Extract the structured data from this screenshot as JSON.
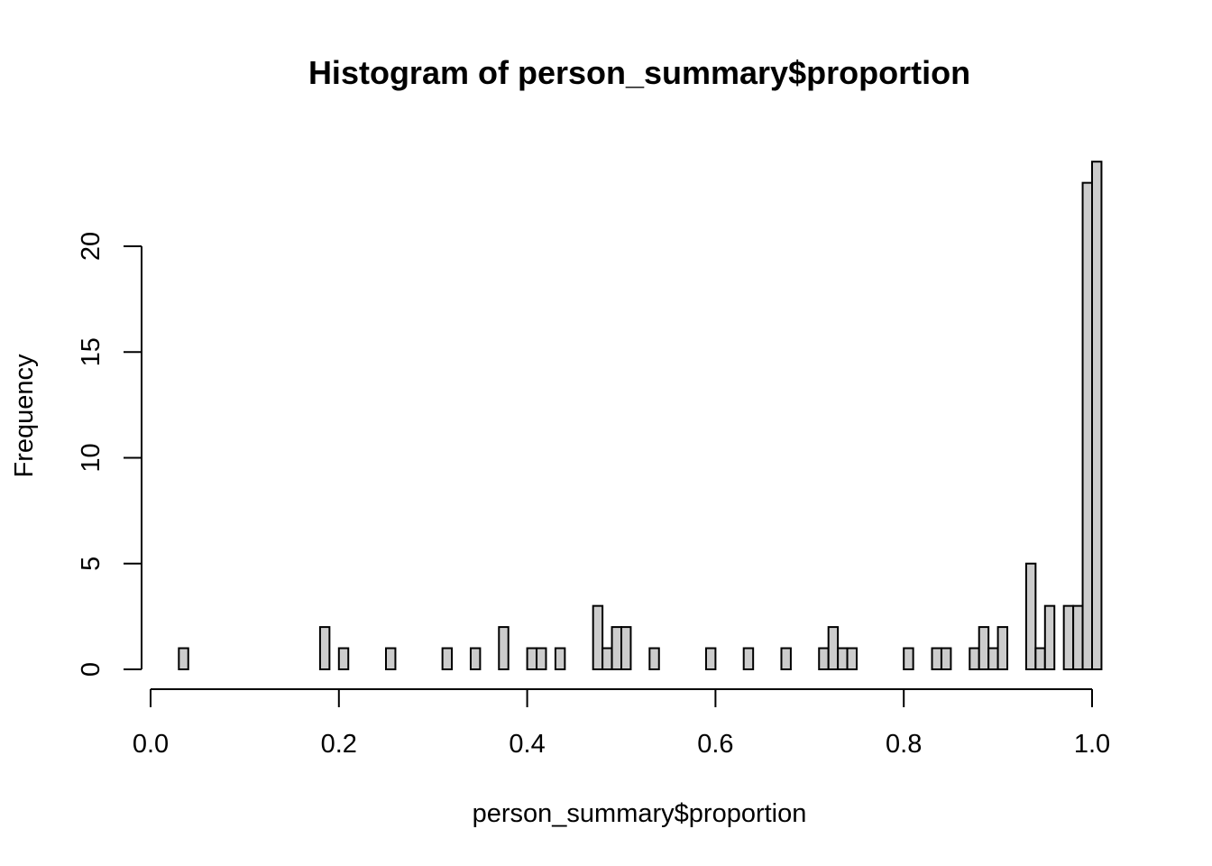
{
  "chart_data": {
    "type": "bar",
    "title": "Histogram of person_summary$proportion",
    "xlabel": "person_summary$proportion",
    "ylabel": "Frequency",
    "bin_width": 0.01,
    "xlim": [
      0.0,
      1.0
    ],
    "ylim": [
      0,
      24
    ],
    "x_ticks": [
      {
        "value": 0.0,
        "label": "0.0"
      },
      {
        "value": 0.2,
        "label": "0.2"
      },
      {
        "value": 0.4,
        "label": "0.4"
      },
      {
        "value": 0.6,
        "label": "0.6"
      },
      {
        "value": 0.8,
        "label": "0.8"
      },
      {
        "value": 1.0,
        "label": "1.0"
      }
    ],
    "y_ticks": [
      {
        "value": 0,
        "label": "0"
      },
      {
        "value": 5,
        "label": "5"
      },
      {
        "value": 10,
        "label": "10"
      },
      {
        "value": 15,
        "label": "15"
      },
      {
        "value": 20,
        "label": "20"
      }
    ],
    "bar_fill": "#cccccc",
    "bin_start": 0.03,
    "counts": [
      1,
      0,
      0,
      0,
      0,
      0,
      0,
      0,
      0,
      0,
      0,
      0,
      0,
      0,
      0,
      2,
      0,
      1,
      0,
      0,
      0,
      0,
      1,
      0,
      0,
      0,
      0,
      0,
      1,
      0,
      0,
      1,
      0,
      0,
      2,
      0,
      0,
      1,
      1,
      0,
      1,
      0,
      0,
      0,
      3,
      1,
      2,
      2,
      0,
      0,
      1,
      0,
      0,
      0,
      0,
      0,
      1,
      0,
      0,
      0,
      1,
      0,
      0,
      0,
      1,
      0,
      0,
      0,
      1,
      2,
      1,
      1,
      0,
      0,
      0,
      0,
      0,
      1,
      0,
      0,
      1,
      1,
      0,
      0,
      1,
      2,
      1,
      2,
      0,
      0,
      5,
      1,
      3,
      0,
      3,
      3,
      23,
      24
    ]
  }
}
